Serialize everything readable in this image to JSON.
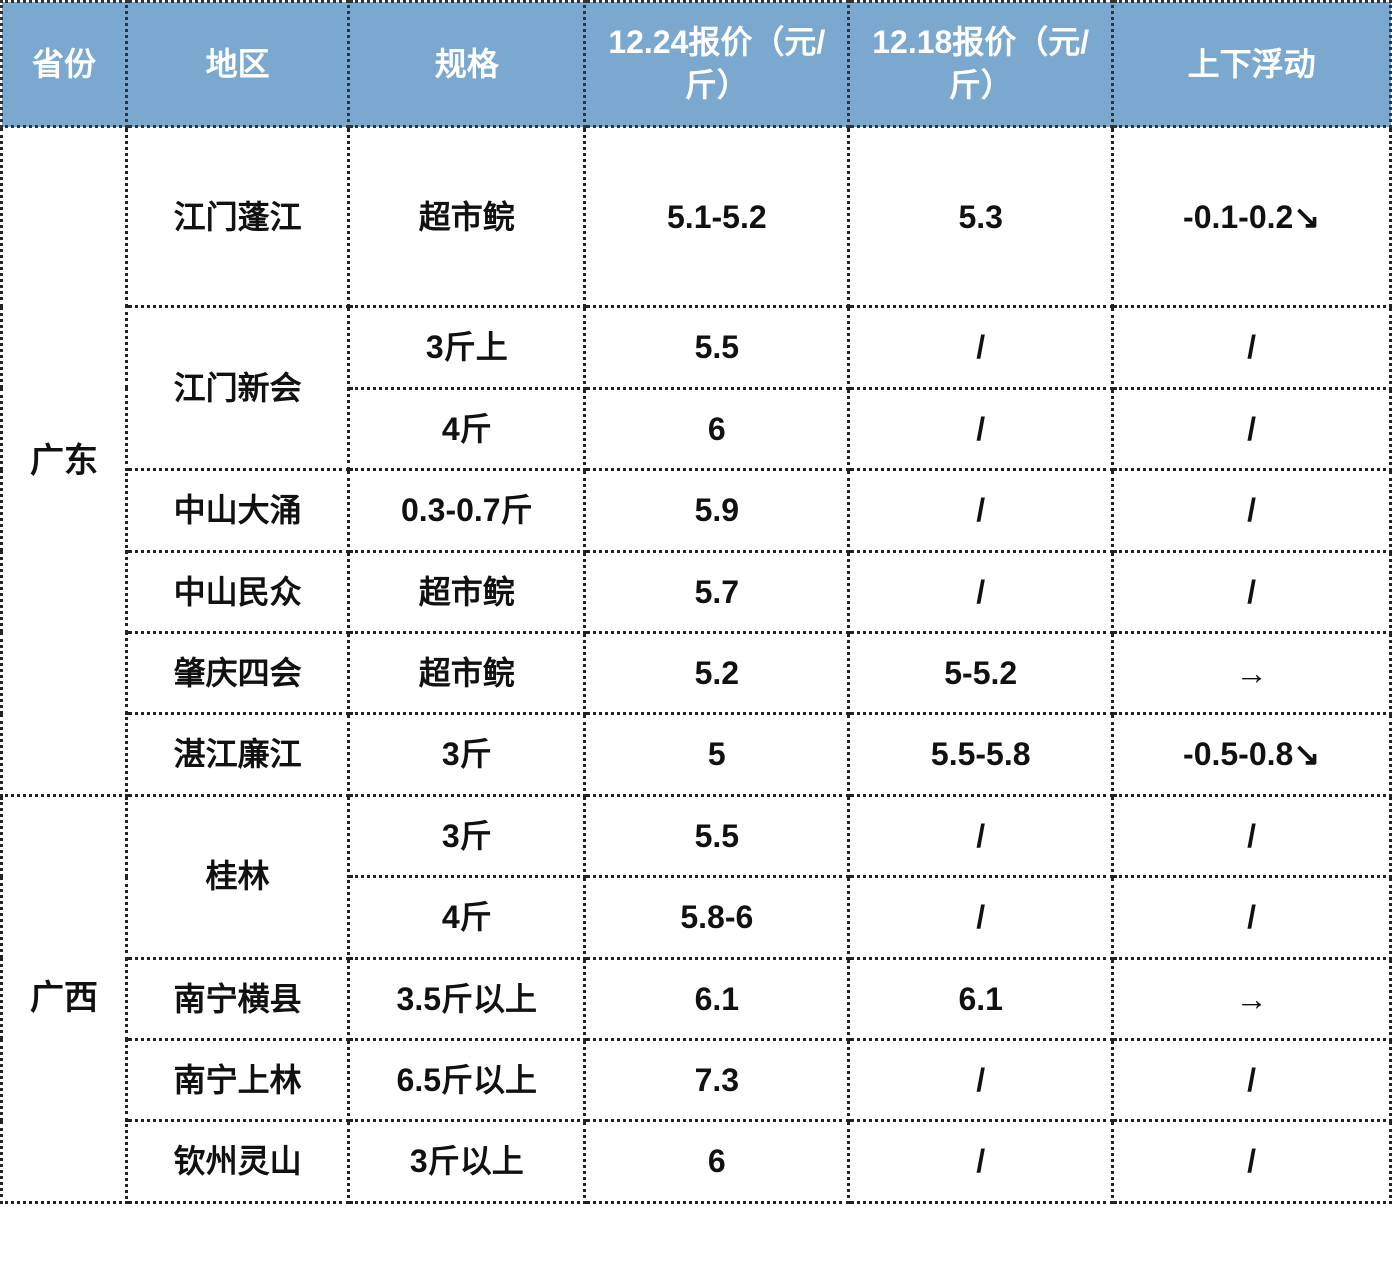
{
  "header_bg": "#7ba8cf",
  "header_fg": "#ffffff",
  "border_color": "#222222",
  "border_style": "dotted",
  "columns": [
    "省份",
    "地区",
    "规格",
    "12.24报价（元/斤）",
    "12.18报价（元/斤）",
    "上下浮动"
  ],
  "column_widths_pct": [
    9,
    16,
    17,
    19,
    19,
    20
  ],
  "font_size_pt": 32,
  "provinces": [
    {
      "name": "广东",
      "rows": [
        {
          "region": "江门蓬江",
          "region_rowspan": 1,
          "spec": "超市鲩",
          "p1": "5.1-5.2",
          "p2": "5.3",
          "fluc": "-0.1-0.2↘",
          "tall": true
        },
        {
          "region": "江门新会",
          "region_rowspan": 2,
          "spec": "3斤上",
          "p1": "5.5",
          "p2": "/",
          "fluc": "/"
        },
        {
          "region": null,
          "spec": "4斤",
          "p1": "6",
          "p2": "/",
          "fluc": "/"
        },
        {
          "region": "中山大涌",
          "region_rowspan": 1,
          "spec": "0.3-0.7斤",
          "p1": "5.9",
          "p2": "/",
          "fluc": "/"
        },
        {
          "region": "中山民众",
          "region_rowspan": 1,
          "spec": "超市鲩",
          "p1": "5.7",
          "p2": "/",
          "fluc": "/"
        },
        {
          "region": "肇庆四会",
          "region_rowspan": 1,
          "spec": "超市鲩",
          "p1": "5.2",
          "p2": "5-5.2",
          "fluc": "→"
        },
        {
          "region": "湛江廉江",
          "region_rowspan": 1,
          "spec": "3斤",
          "p1": "5",
          "p2": "5.5-5.8",
          "fluc": "-0.5-0.8↘"
        }
      ]
    },
    {
      "name": "广西",
      "rows": [
        {
          "region": "桂林",
          "region_rowspan": 2,
          "spec": "3斤",
          "p1": "5.5",
          "p2": "/",
          "fluc": "/"
        },
        {
          "region": null,
          "spec": "4斤",
          "p1": "5.8-6",
          "p2": "/",
          "fluc": "/"
        },
        {
          "region": "南宁横县",
          "region_rowspan": 1,
          "spec": "3.5斤以上",
          "p1": "6.1",
          "p2": "6.1",
          "fluc": "→"
        },
        {
          "region": "南宁上林",
          "region_rowspan": 1,
          "spec": "6.5斤以上",
          "p1": "7.3",
          "p2": "/",
          "fluc": "/"
        },
        {
          "region": "钦州灵山",
          "region_rowspan": 1,
          "spec": "3斤以上",
          "p1": "6",
          "p2": "/",
          "fluc": "/"
        }
      ]
    }
  ]
}
